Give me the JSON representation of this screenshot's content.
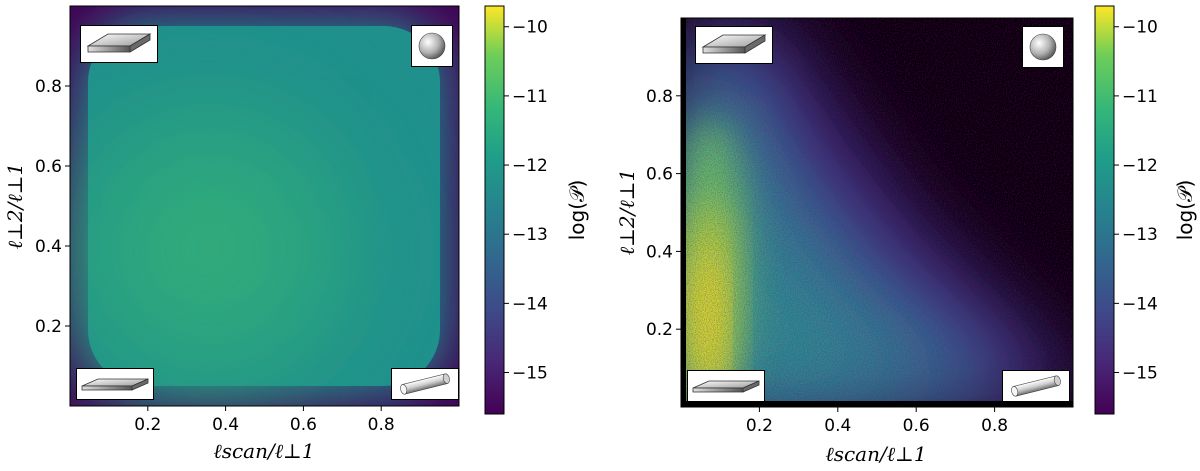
{
  "chart_data": [
    {
      "type": "heatmap",
      "xlabel": "ℓscan/ℓ⊥1",
      "ylabel": "ℓ⊥2/ℓ⊥1",
      "xlim": [
        0,
        1
      ],
      "ylim": [
        0,
        1
      ],
      "xticks": [
        "0.2",
        "0.4",
        "0.6",
        "0.8"
      ],
      "yticks": [
        "0.2",
        "0.4",
        "0.6",
        "0.8"
      ],
      "colorbar": {
        "label": "log(𝒫)",
        "range": [
          -15.6,
          -9.7
        ],
        "ticks": [
          "−10",
          "−11",
          "−12",
          "−13",
          "−14",
          "−15"
        ]
      },
      "colormap": "viridis",
      "peak": {
        "x": 0.35,
        "y": 0.4,
        "value": -12.3
      },
      "corner_icons": [
        "flat-slab-icon",
        "sphere-icon",
        "thin-slab-icon",
        "cylinder-icon"
      ]
    },
    {
      "type": "heatmap",
      "xlabel": "ℓscan/ℓ⊥1",
      "ylabel": "ℓ⊥2/ℓ⊥1",
      "xlim": [
        0,
        1
      ],
      "ylim": [
        0,
        1
      ],
      "xticks": [
        "0.2",
        "0.4",
        "0.6",
        "0.8"
      ],
      "yticks": [
        "0.2",
        "0.4",
        "0.6",
        "0.8"
      ],
      "colorbar": {
        "label": "log(𝒫)",
        "range": [
          -15.6,
          -9.7
        ],
        "ticks": [
          "−10",
          "−11",
          "−12",
          "−13",
          "−14",
          "−15"
        ]
      },
      "colormap": "viridis",
      "peak": {
        "x": 0.08,
        "y": 0.35,
        "value": -10.0
      },
      "corner_icons": [
        "flat-slab-icon",
        "sphere-icon",
        "thin-slab-icon",
        "cylinder-icon"
      ]
    }
  ]
}
